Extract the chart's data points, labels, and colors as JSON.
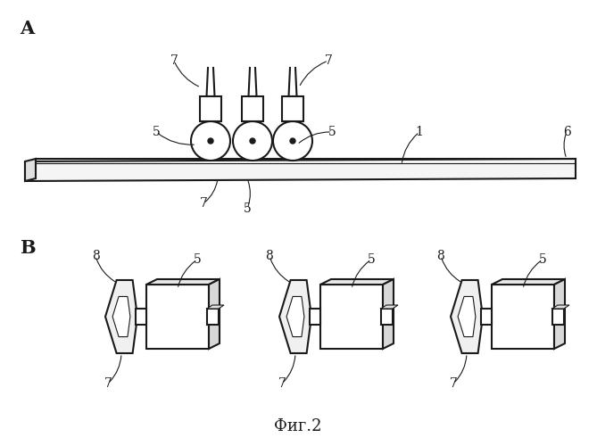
{
  "title": "Фиг.2",
  "label_A": "A",
  "label_B": "B",
  "bg_color": "#ffffff",
  "line_color": "#1a1a1a",
  "line_width": 1.5,
  "thin_line": 0.8,
  "font_size_label": 15,
  "font_size_num": 10,
  "font_size_title": 13
}
